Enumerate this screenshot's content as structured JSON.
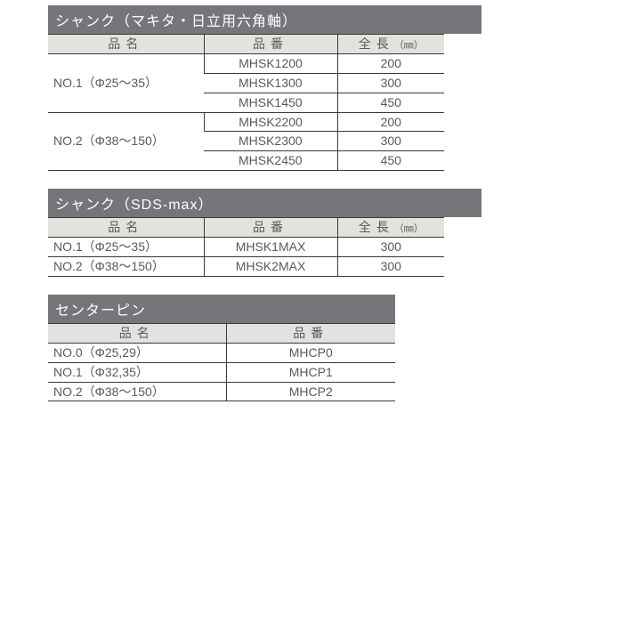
{
  "colors": {
    "title_bg": "#747679",
    "title_fg": "#ffffff",
    "header_bg": "#e4e2df",
    "border": "#3a3a3a",
    "text": "#5a5a5a"
  },
  "tables": [
    {
      "title": "シャンク（マキタ・日立用六角軸）",
      "title_width": 487,
      "columns": [
        "品名",
        "品番",
        "全長"
      ],
      "length_unit": "（㎜）",
      "widths": [
        175,
        150,
        120
      ],
      "rows": [
        {
          "name": "NO.1（Φ25～35）",
          "name_rowspan": 3,
          "code": "MHSK1200",
          "length": "200"
        },
        {
          "code": "MHSK1300",
          "length": "300"
        },
        {
          "code": "MHSK1450",
          "length": "450"
        },
        {
          "name": "NO.2（Φ38～150）",
          "name_rowspan": 3,
          "code": "MHSK2200",
          "length": "200"
        },
        {
          "code": "MHSK2300",
          "length": "300"
        },
        {
          "code": "MHSK2450",
          "length": "450"
        }
      ]
    },
    {
      "title": "シャンク（SDS-max）",
      "title_width": 487,
      "columns": [
        "品名",
        "品番",
        "全長"
      ],
      "length_unit": "（㎜）",
      "widths": [
        175,
        150,
        120
      ],
      "rows": [
        {
          "name": "NO.1（Φ25～35）",
          "code": "MHSK1MAX",
          "length": "300"
        },
        {
          "name": "NO.2（Φ38～150）",
          "code": "MHSK2MAX",
          "length": "300"
        }
      ]
    },
    {
      "title": "センターピン",
      "title_width": 390,
      "columns": [
        "品名",
        "品番"
      ],
      "widths": [
        200,
        190
      ],
      "rows": [
        {
          "name": "NO.0（Φ25,29）",
          "code": "MHCP0"
        },
        {
          "name": "NO.1（Φ32,35）",
          "code": "MHCP1"
        },
        {
          "name": "NO.2（Φ38～150）",
          "code": "MHCP2"
        }
      ]
    }
  ]
}
